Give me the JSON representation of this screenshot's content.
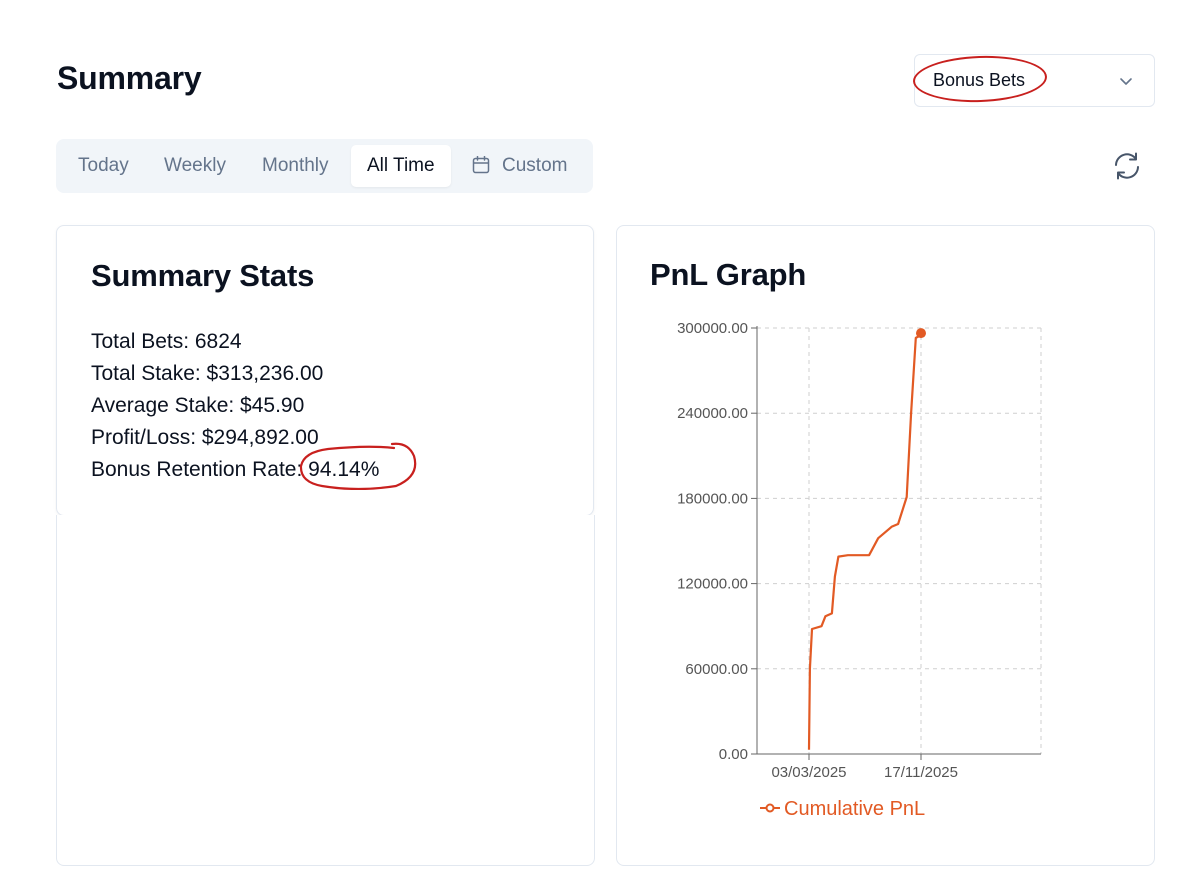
{
  "header": {
    "title": "Summary",
    "bet_type": "Bonus Bets"
  },
  "tabs": [
    {
      "label": "Today"
    },
    {
      "label": "Weekly"
    },
    {
      "label": "Monthly"
    },
    {
      "label": "All Time"
    },
    {
      "label": "Custom"
    }
  ],
  "active_tab": "All Time",
  "stats": {
    "title": "Summary Stats",
    "total_bets": "Total Bets: 6824",
    "total_stake": "Total Stake: $313,236.00",
    "average_stake": "Average Stake: $45.90",
    "profit_loss": "Profit/Loss: $294,892.00",
    "bonus_retention": "Bonus Retention Rate: 94.14%"
  },
  "graph": {
    "title": "PnL Graph",
    "legend": "Cumulative PnL"
  },
  "colors": {
    "line": "#e25a24",
    "annotation": "#c8201e"
  },
  "icons": {
    "dropdown": "chevron-down-icon",
    "refresh": "refresh-icon",
    "calendar": "calendar-icon"
  },
  "chart_data": {
    "type": "line",
    "title": "PnL Graph",
    "xlabel": "",
    "ylabel": "",
    "ylim": [
      0,
      300000
    ],
    "yticks": [
      "0.00",
      "60000.00",
      "120000.00",
      "180000.00",
      "240000.00",
      "300000.00"
    ],
    "xticks": [
      "03/03/2025",
      "17/11/2025"
    ],
    "grid": true,
    "legend_placement": "bottom",
    "series": [
      {
        "name": "Cumulative PnL",
        "points": [
          {
            "x": "2025-03-03",
            "y": 3000
          },
          {
            "x": "2025-03-05",
            "y": 60000
          },
          {
            "x": "2025-03-10",
            "y": 88000
          },
          {
            "x": "2025-04-01",
            "y": 90000
          },
          {
            "x": "2025-04-10",
            "y": 97000
          },
          {
            "x": "2025-04-25",
            "y": 99000
          },
          {
            "x": "2025-05-02",
            "y": 125000
          },
          {
            "x": "2025-05-10",
            "y": 139000
          },
          {
            "x": "2025-06-01",
            "y": 140000
          },
          {
            "x": "2025-07-20",
            "y": 140000
          },
          {
            "x": "2025-08-10",
            "y": 152000
          },
          {
            "x": "2025-09-10",
            "y": 160000
          },
          {
            "x": "2025-09-25",
            "y": 162000
          },
          {
            "x": "2025-10-15",
            "y": 181000
          },
          {
            "x": "2025-10-25",
            "y": 240000
          },
          {
            "x": "2025-11-05",
            "y": 293000
          },
          {
            "x": "2025-11-17",
            "y": 295000
          }
        ]
      }
    ]
  }
}
